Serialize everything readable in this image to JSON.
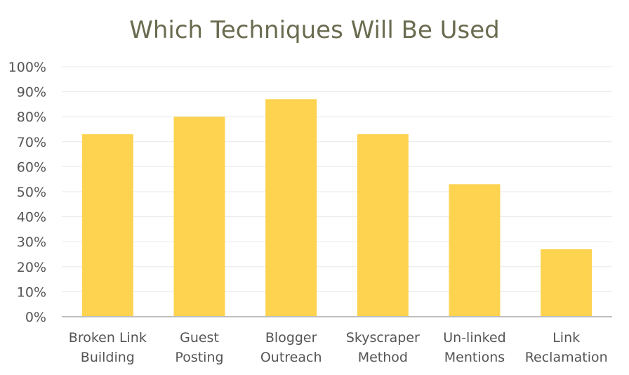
{
  "chart_data": {
    "type": "bar",
    "title": "Which Techniques Will Be Used",
    "categories": [
      [
        "Broken Link",
        "Building"
      ],
      [
        "Guest",
        "Posting"
      ],
      [
        "Blogger",
        "Outreach"
      ],
      [
        "Skyscraper",
        "Method"
      ],
      [
        "Un-linked",
        "Mentions"
      ],
      [
        "Link",
        "Reclamation"
      ]
    ],
    "values": [
      73,
      80,
      87,
      73,
      53,
      27
    ],
    "ylim": [
      0,
      100
    ],
    "yticks": [
      "0%",
      "10%",
      "20%",
      "30%",
      "40%",
      "50%",
      "60%",
      "70%",
      "80%",
      "90%",
      "100%"
    ],
    "ytick_step": 10,
    "grid": true,
    "legend": "none",
    "colors": {
      "bar": "#fdd34f",
      "grid": "#e8e8e8",
      "axis": "#bfbfbf",
      "title": "#6b6b50",
      "text": "#555555"
    }
  }
}
